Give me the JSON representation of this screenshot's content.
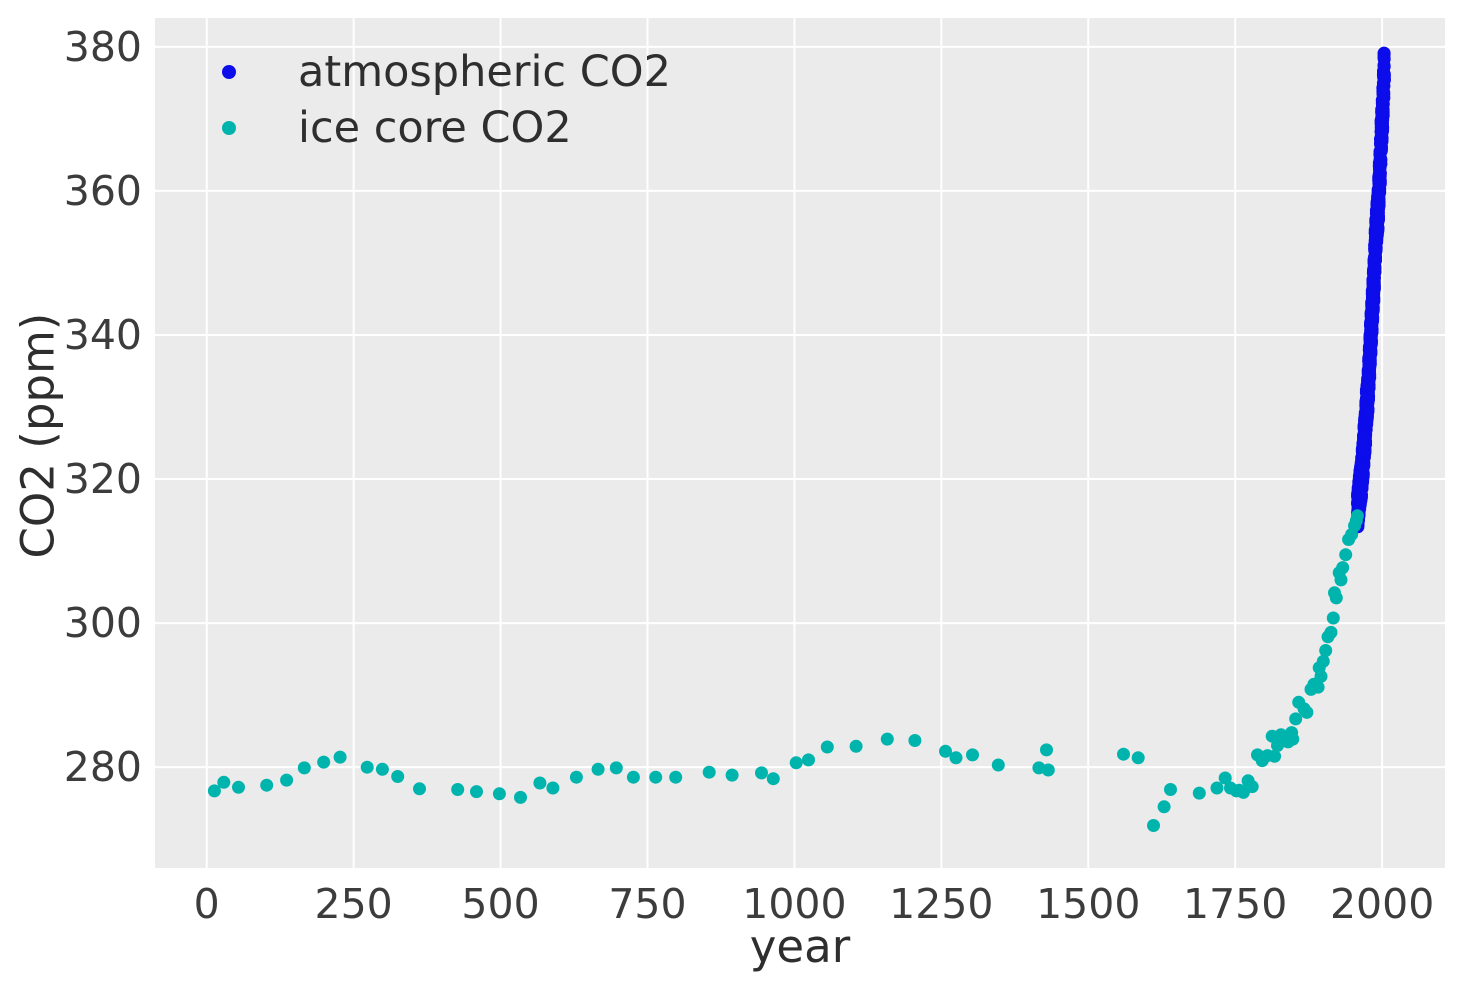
{
  "figure": {
    "background": "#ffffff",
    "plot_background": "#ebebeb",
    "grid_color": "#ffffff"
  },
  "chart_data": {
    "type": "scatter",
    "title": "",
    "xlabel": "year",
    "ylabel": "CO2 (ppm)",
    "xlim": [
      -88,
      2107
    ],
    "ylim": [
      266,
      384
    ],
    "x_ticks": [
      0,
      250,
      500,
      750,
      1000,
      1250,
      1500,
      1750,
      2000
    ],
    "y_ticks": [
      280,
      300,
      320,
      340,
      360,
      380
    ],
    "grid": true,
    "legend_position": "upper left",
    "series": [
      {
        "name": "atmospheric CO2",
        "color": "#0d0deb",
        "marker_radius_px": 6.5,
        "resolution": "monthly 1958-2003",
        "seasonal_amplitude_ppm": 2.5,
        "annual_means": {
          "start_year": 1958,
          "values": [
            315.2,
            316.0,
            316.9,
            317.6,
            318.5,
            319.0,
            319.6,
            320.0,
            321.4,
            322.2,
            323.0,
            324.6,
            325.7,
            326.3,
            327.5,
            329.7,
            330.2,
            331.1,
            332.0,
            333.8,
            335.4,
            336.8,
            338.8,
            340.1,
            341.5,
            343.1,
            344.7,
            346.1,
            347.4,
            349.2,
            351.6,
            353.1,
            354.4,
            355.6,
            356.5,
            357.1,
            358.8,
            360.8,
            362.6,
            363.7,
            366.7,
            368.4,
            369.6,
            371.1,
            373.3,
            375.8
          ]
        }
      },
      {
        "name": "ice core CO2",
        "color": "#00b4ae",
        "marker_radius_px": 6.5,
        "points": [
          [
            13,
            276.7
          ],
          [
            29,
            277.9
          ],
          [
            54,
            277.2
          ],
          [
            102,
            277.5
          ],
          [
            136,
            278.2
          ],
          [
            166,
            279.9
          ],
          [
            199,
            280.7
          ],
          [
            227,
            281.4
          ],
          [
            273,
            280.0
          ],
          [
            299,
            279.7
          ],
          [
            325,
            278.7
          ],
          [
            362,
            277.0
          ],
          [
            427,
            276.9
          ],
          [
            459,
            276.6
          ],
          [
            498,
            276.3
          ],
          [
            534,
            275.8
          ],
          [
            567,
            277.8
          ],
          [
            589,
            277.1
          ],
          [
            629,
            278.6
          ],
          [
            666,
            279.7
          ],
          [
            697,
            279.9
          ],
          [
            726,
            278.6
          ],
          [
            764,
            278.6
          ],
          [
            798,
            278.6
          ],
          [
            855,
            279.3
          ],
          [
            894,
            278.9
          ],
          [
            944,
            279.2
          ],
          [
            964,
            278.4
          ],
          [
            1003,
            280.6
          ],
          [
            1024,
            281.0
          ],
          [
            1056,
            282.8
          ],
          [
            1105,
            282.9
          ],
          [
            1158,
            283.9
          ],
          [
            1205,
            283.7
          ],
          [
            1257,
            282.2
          ],
          [
            1275,
            281.3
          ],
          [
            1303,
            281.7
          ],
          [
            1347,
            280.3
          ],
          [
            1416,
            279.9
          ],
          [
            1429,
            282.4
          ],
          [
            1432,
            279.6
          ],
          [
            1560,
            281.8
          ],
          [
            1585,
            281.3
          ],
          [
            1611,
            271.9
          ],
          [
            1629,
            274.5
          ],
          [
            1640,
            276.9
          ],
          [
            1689,
            276.4
          ],
          [
            1719,
            277.1
          ],
          [
            1733,
            278.5
          ],
          [
            1742,
            277.1
          ],
          [
            1752,
            276.7
          ],
          [
            1757,
            276.8
          ],
          [
            1764,
            276.5
          ],
          [
            1772,
            278.1
          ],
          [
            1779,
            277.3
          ],
          [
            1788,
            281.7
          ],
          [
            1796,
            280.9
          ],
          [
            1805,
            281.6
          ],
          [
            1813,
            284.3
          ],
          [
            1817,
            281.5
          ],
          [
            1822,
            283.0
          ],
          [
            1828,
            284.5
          ],
          [
            1834,
            284.0
          ],
          [
            1839,
            284.2
          ],
          [
            1840,
            283.5
          ],
          [
            1846,
            284.8
          ],
          [
            1848,
            283.9
          ],
          [
            1853,
            286.7
          ],
          [
            1858,
            289.0
          ],
          [
            1867,
            288.1
          ],
          [
            1872,
            287.6
          ],
          [
            1879,
            290.8
          ],
          [
            1884,
            291.5
          ],
          [
            1891,
            291.1
          ],
          [
            1893,
            293.8
          ],
          [
            1896,
            292.6
          ],
          [
            1900,
            294.7
          ],
          [
            1904,
            296.2
          ],
          [
            1908,
            298.1
          ],
          [
            1913,
            298.7
          ],
          [
            1917,
            300.7
          ],
          [
            1919,
            304.2
          ],
          [
            1922,
            303.5
          ],
          [
            1927,
            307.0
          ],
          [
            1930,
            306.0
          ],
          [
            1933,
            307.7
          ],
          [
            1938,
            309.5
          ],
          [
            1943,
            311.6
          ],
          [
            1948,
            312.3
          ],
          [
            1953,
            313.5
          ],
          [
            1956,
            314.2
          ],
          [
            1958,
            314.9
          ]
        ]
      }
    ]
  }
}
